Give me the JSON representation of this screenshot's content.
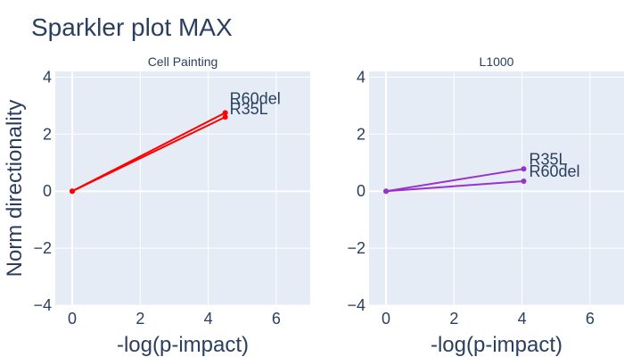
{
  "chart_data": {
    "type": "line",
    "title": "Sparkler plot MAX",
    "ylabel": "Norm directionality",
    "panels": [
      {
        "name": "Cell Painting",
        "xlabel": "-log(p-impact)",
        "xlim": [
          -0.5,
          7
        ],
        "ylim": [
          -4,
          4.2
        ],
        "xticks": [
          0,
          2,
          4,
          6
        ],
        "yticks": [
          -4,
          -2,
          0,
          2,
          4
        ],
        "color": "#ff0000",
        "series": [
          {
            "label": "R60del",
            "x": [
              0,
              4.5
            ],
            "y": [
              0,
              2.75
            ]
          },
          {
            "label": "R35L",
            "x": [
              0,
              4.5
            ],
            "y": [
              0,
              2.6
            ]
          }
        ]
      },
      {
        "name": "L1000",
        "xlabel": "-log(p-impact)",
        "xlim": [
          -0.5,
          7
        ],
        "ylim": [
          -4,
          4.2
        ],
        "xticks": [
          0,
          2,
          4,
          6
        ],
        "yticks": [
          -4,
          -2,
          0,
          2,
          4
        ],
        "color": "#9932cc",
        "series": [
          {
            "label": "R35L",
            "x": [
              0,
              4.05
            ],
            "y": [
              0,
              0.78
            ]
          },
          {
            "label": "R60del",
            "x": [
              0,
              4.05
            ],
            "y": [
              0,
              0.35
            ]
          }
        ]
      }
    ]
  }
}
